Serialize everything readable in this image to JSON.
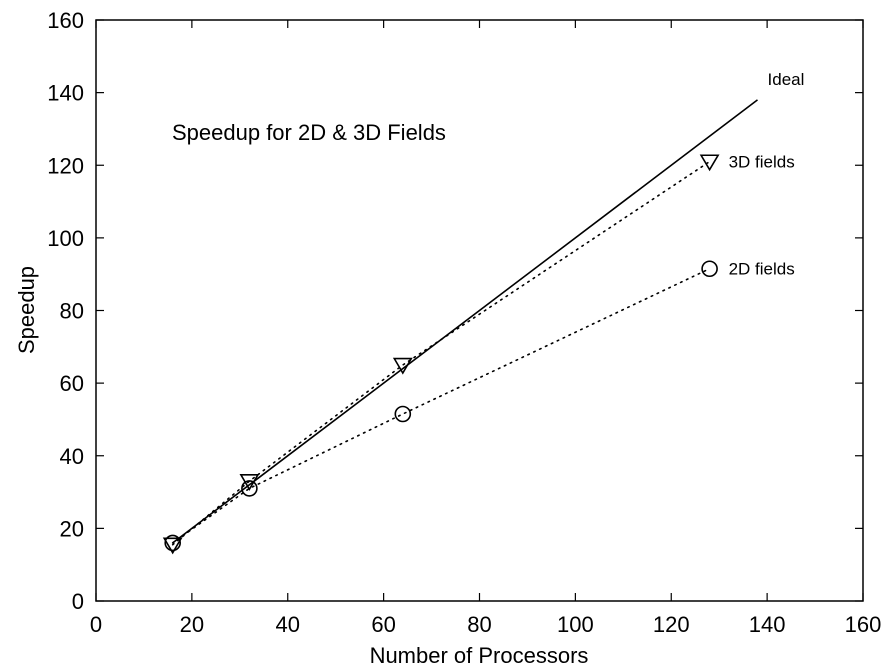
{
  "chart_data": {
    "type": "line",
    "title": "",
    "annotation": "Speedup for 2D & 3D Fields",
    "xlabel": "Number of Processors",
    "ylabel": "Speedup",
    "xlim": [
      0,
      160
    ],
    "ylim": [
      0,
      160
    ],
    "xticks": [
      0,
      20,
      40,
      60,
      80,
      100,
      120,
      140,
      160
    ],
    "yticks": [
      0,
      20,
      40,
      60,
      80,
      100,
      120,
      140,
      160
    ],
    "grid": false,
    "legend": "none",
    "series": [
      {
        "name": "Ideal",
        "style": "solid",
        "marker": "none",
        "x": [
          16,
          138
        ],
        "y": [
          16,
          138
        ]
      },
      {
        "name": "3D fields",
        "style": "dotted",
        "marker": "triangle-down",
        "x": [
          16,
          32,
          64,
          128
        ],
        "y": [
          15.5,
          33,
          65,
          121
        ]
      },
      {
        "name": "2D fields",
        "style": "dotted",
        "marker": "circle",
        "x": [
          16,
          32,
          64,
          128
        ],
        "y": [
          16,
          31,
          51.5,
          91.5
        ]
      }
    ]
  }
}
